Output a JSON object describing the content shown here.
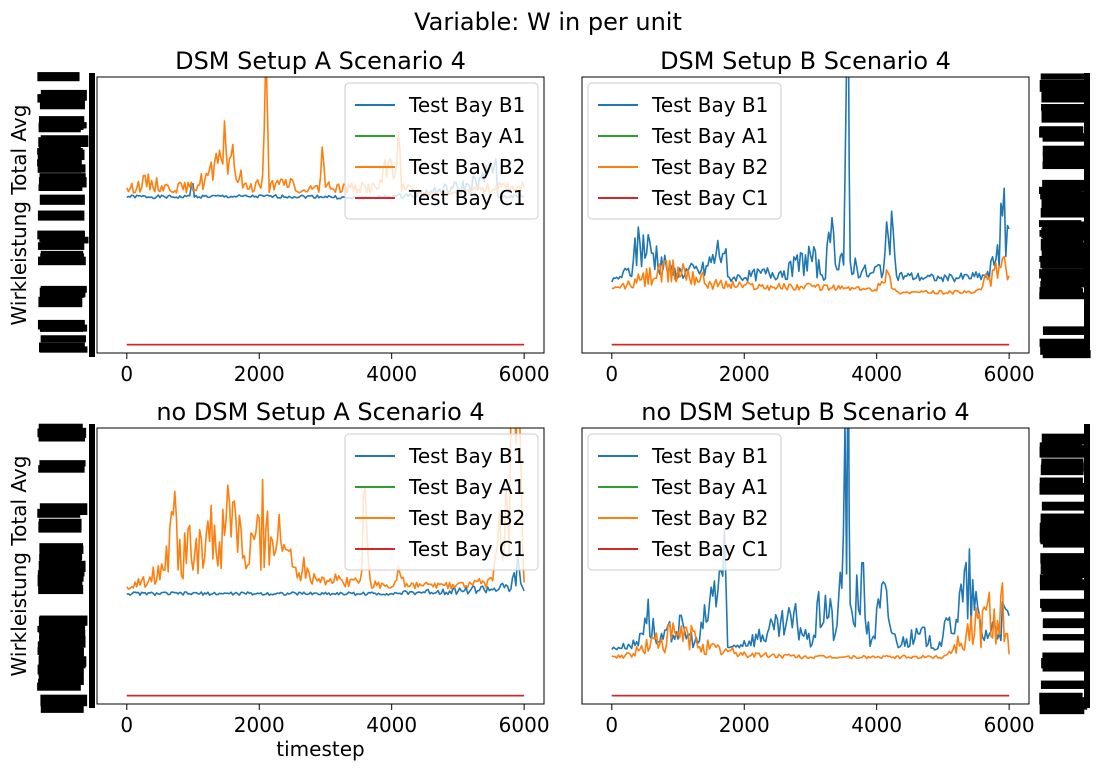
{
  "figure": {
    "suptitle": "Variable: W in per unit"
  },
  "chart_data": [
    {
      "type": "line",
      "title": "DSM Setup A Scenario 4",
      "xlabel": "",
      "ylabel": "Wirkleistung Total Avg",
      "xlim": [
        -450,
        6300
      ],
      "x_ticks": [
        0,
        2000,
        4000,
        6000
      ],
      "y_tick_labels": "overlapping / illegible",
      "legend_loc": "top-right",
      "series": [
        {
          "name": "Test Bay B1",
          "color": "#1f77b4",
          "baseline": 0.567,
          "points": [
            [
              0,
              0.567
            ],
            [
              900,
              0.565
            ],
            [
              1000,
              0.6
            ],
            [
              1020,
              0.567
            ],
            [
              2000,
              0.567
            ],
            [
              3000,
              0.567
            ],
            [
              3400,
              0.56
            ],
            [
              4000,
              0.567
            ],
            [
              4200,
              0.57
            ],
            [
              5100,
              0.6
            ],
            [
              5400,
              0.62
            ],
            [
              5550,
              0.72
            ],
            [
              5600,
              0.567
            ],
            [
              6000,
              0.567
            ]
          ]
        },
        {
          "name": "Test Bay A1",
          "color": "#2ca02c",
          "baseline": 0.03,
          "points": [
            [
              0,
              0.03
            ],
            [
              6000,
              0.03
            ]
          ]
        },
        {
          "name": "Test Bay B2",
          "color": "#ff7f0e",
          "baseline": 0.58,
          "points": [
            [
              0,
              0.59
            ],
            [
              300,
              0.62
            ],
            [
              600,
              0.6
            ],
            [
              1000,
              0.6
            ],
            [
              1400,
              0.67
            ],
            [
              1450,
              0.8
            ],
            [
              1600,
              0.68
            ],
            [
              1800,
              0.6
            ],
            [
              2050,
              0.62
            ],
            [
              2100,
              0.96
            ],
            [
              2150,
              0.6
            ],
            [
              2500,
              0.62
            ],
            [
              2600,
              0.58
            ],
            [
              2900,
              0.6
            ],
            [
              2950,
              0.82
            ],
            [
              3000,
              0.6
            ],
            [
              3400,
              0.6
            ],
            [
              3800,
              0.6
            ],
            [
              4100,
              0.75
            ],
            [
              4150,
              0.6
            ],
            [
              4500,
              0.58
            ],
            [
              5000,
              0.58
            ],
            [
              5500,
              0.6
            ],
            [
              6000,
              0.6
            ]
          ]
        },
        {
          "name": "Test Bay C1",
          "color": "#d62728",
          "baseline": 0.03,
          "points": [
            [
              0,
              0.03
            ],
            [
              6000,
              0.03
            ]
          ]
        }
      ]
    },
    {
      "type": "line",
      "title": "DSM Setup B Scenario 4",
      "xlabel": "",
      "ylabel": "",
      "xlim": [
        -450,
        6300
      ],
      "x_ticks": [
        0,
        2000,
        4000,
        6000
      ],
      "y_tick_labels": "overlapping / illegible",
      "legend_loc": "top-left",
      "series": [
        {
          "name": "Test Bay B1",
          "color": "#1f77b4",
          "baseline": 0.26,
          "points": [
            [
              0,
              0.26
            ],
            [
              300,
              0.3
            ],
            [
              400,
              0.4
            ],
            [
              700,
              0.35
            ],
            [
              900,
              0.29
            ],
            [
              1400,
              0.3
            ],
            [
              1700,
              0.39
            ],
            [
              1750,
              0.27
            ],
            [
              2700,
              0.3
            ],
            [
              3000,
              0.35
            ],
            [
              3200,
              0.28
            ],
            [
              3300,
              0.4
            ],
            [
              3500,
              0.34
            ],
            [
              3570,
              0.97
            ],
            [
              3600,
              0.33
            ],
            [
              3900,
              0.28
            ],
            [
              4100,
              0.32
            ],
            [
              4200,
              0.45
            ],
            [
              4300,
              0.28
            ],
            [
              5000,
              0.27
            ],
            [
              5700,
              0.28
            ],
            [
              5900,
              0.46
            ],
            [
              6000,
              0.45
            ]
          ]
        },
        {
          "name": "Test Bay A1",
          "color": "#2ca02c",
          "baseline": 0.03,
          "points": [
            [
              0,
              0.03
            ],
            [
              6000,
              0.03
            ]
          ]
        },
        {
          "name": "Test Bay B2",
          "color": "#ff7f0e",
          "baseline": 0.23,
          "points": [
            [
              0,
              0.23
            ],
            [
              300,
              0.25
            ],
            [
              600,
              0.28
            ],
            [
              1100,
              0.3
            ],
            [
              1500,
              0.25
            ],
            [
              2400,
              0.24
            ],
            [
              3000,
              0.24
            ],
            [
              4000,
              0.23
            ],
            [
              4100,
              0.3
            ],
            [
              4300,
              0.22
            ],
            [
              5500,
              0.22
            ],
            [
              5900,
              0.33
            ],
            [
              6000,
              0.28
            ]
          ]
        },
        {
          "name": "Test Bay C1",
          "color": "#d62728",
          "baseline": 0.03,
          "points": [
            [
              0,
              0.03
            ],
            [
              6000,
              0.03
            ]
          ]
        }
      ]
    },
    {
      "type": "line",
      "title": "no DSM Setup A Scenario 4",
      "xlabel": "timestep",
      "ylabel": "Wirkleistung Total Avg",
      "xlim": [
        -450,
        6300
      ],
      "x_ticks": [
        0,
        2000,
        4000,
        6000
      ],
      "y_tick_labels": "overlapping / illegible",
      "legend_loc": "top-right",
      "series": [
        {
          "name": "Test Bay B1",
          "color": "#1f77b4",
          "baseline": 0.4,
          "points": [
            [
              0,
              0.4
            ],
            [
              3500,
              0.4
            ],
            [
              4000,
              0.4
            ],
            [
              5800,
              0.42
            ],
            [
              5900,
              0.48
            ],
            [
              6000,
              0.41
            ]
          ]
        },
        {
          "name": "Test Bay A1",
          "color": "#2ca02c",
          "baseline": 0.03,
          "points": [
            [
              0,
              0.03
            ],
            [
              6000,
              0.03
            ]
          ]
        },
        {
          "name": "Test Bay B2",
          "color": "#ff7f0e",
          "baseline": 0.42,
          "points": [
            [
              0,
              0.42
            ],
            [
              300,
              0.45
            ],
            [
              500,
              0.5
            ],
            [
              750,
              0.73
            ],
            [
              800,
              0.52
            ],
            [
              1200,
              0.62
            ],
            [
              1400,
              0.55
            ],
            [
              1600,
              0.7
            ],
            [
              1800,
              0.5
            ],
            [
              2050,
              0.65
            ],
            [
              2300,
              0.58
            ],
            [
              2600,
              0.5
            ],
            [
              3000,
              0.45
            ],
            [
              3500,
              0.44
            ],
            [
              3600,
              0.72
            ],
            [
              3700,
              0.44
            ],
            [
              4000,
              0.42
            ],
            [
              4100,
              0.5
            ],
            [
              4200,
              0.43
            ],
            [
              5000,
              0.43
            ],
            [
              5500,
              0.44
            ],
            [
              5900,
              0.97
            ],
            [
              6000,
              0.44
            ]
          ]
        },
        {
          "name": "Test Bay C1",
          "color": "#d62728",
          "baseline": 0.03,
          "points": [
            [
              0,
              0.03
            ],
            [
              6000,
              0.03
            ]
          ]
        }
      ]
    },
    {
      "type": "line",
      "title": "no DSM Setup B Scenario 4",
      "xlabel": "",
      "ylabel": "",
      "xlim": [
        -450,
        6300
      ],
      "x_ticks": [
        0,
        2000,
        4000,
        6000
      ],
      "y_tick_labels": "overlapping / illegible",
      "legend_loc": "top-left",
      "series": [
        {
          "name": "Test Bay B1",
          "color": "#1f77b4",
          "baseline": 0.2,
          "points": [
            [
              0,
              0.2
            ],
            [
              400,
              0.22
            ],
            [
              500,
              0.35
            ],
            [
              700,
              0.22
            ],
            [
              1000,
              0.28
            ],
            [
              1300,
              0.22
            ],
            [
              1700,
              0.52
            ],
            [
              1750,
              0.2
            ],
            [
              2800,
              0.3
            ],
            [
              3000,
              0.22
            ],
            [
              3200,
              0.38
            ],
            [
              3400,
              0.25
            ],
            [
              3570,
              0.97
            ],
            [
              3600,
              0.3
            ],
            [
              3750,
              0.47
            ],
            [
              3900,
              0.22
            ],
            [
              4100,
              0.38
            ],
            [
              4300,
              0.22
            ],
            [
              4700,
              0.25
            ],
            [
              4900,
              0.2
            ],
            [
              5400,
              0.42
            ],
            [
              5600,
              0.25
            ],
            [
              5900,
              0.3
            ],
            [
              6000,
              0.32
            ]
          ]
        },
        {
          "name": "Test Bay A1",
          "color": "#2ca02c",
          "baseline": 0.03,
          "points": [
            [
              0,
              0.03
            ],
            [
              6000,
              0.03
            ]
          ]
        },
        {
          "name": "Test Bay B2",
          "color": "#ff7f0e",
          "baseline": 0.17,
          "points": [
            [
              0,
              0.17
            ],
            [
              300,
              0.18
            ],
            [
              600,
              0.22
            ],
            [
              1000,
              0.25
            ],
            [
              1200,
              0.24
            ],
            [
              1500,
              0.2
            ],
            [
              2000,
              0.18
            ],
            [
              3000,
              0.17
            ],
            [
              4000,
              0.17
            ],
            [
              5000,
              0.17
            ],
            [
              5900,
              0.37
            ],
            [
              6000,
              0.18
            ]
          ]
        },
        {
          "name": "Test Bay C1",
          "color": "#d62728",
          "baseline": 0.03,
          "points": [
            [
              0,
              0.03
            ],
            [
              6000,
              0.03
            ]
          ]
        }
      ]
    }
  ]
}
